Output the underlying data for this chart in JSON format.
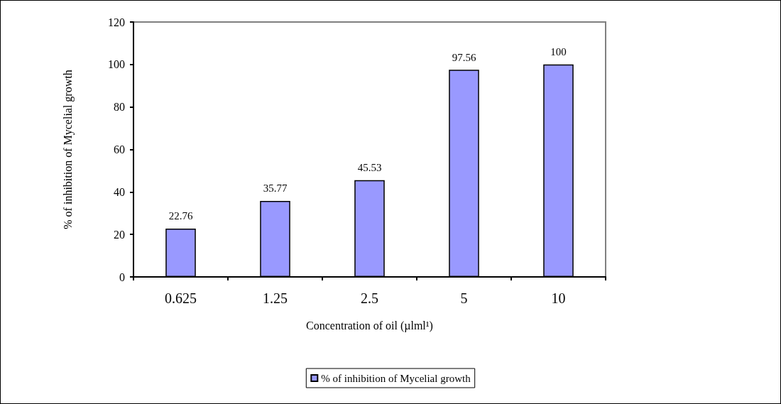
{
  "chart_data": {
    "type": "bar",
    "xlabel": "Concentration of oil (µlml¹)",
    "ylabel": "% of inhibition of Mycelial growth",
    "categories": [
      "0.625",
      "1.25",
      "2.5",
      "5",
      "10"
    ],
    "series": [
      {
        "name": "% of inhibition of Mycelial growth",
        "color": "#9999ff",
        "values": [
          22.76,
          35.77,
          45.53,
          97.56,
          100
        ]
      }
    ],
    "ylim": [
      0,
      120
    ],
    "yticks": [
      0,
      20,
      40,
      60,
      80,
      100,
      120
    ],
    "data_labels": true,
    "grid": false,
    "legend": "bottom"
  }
}
